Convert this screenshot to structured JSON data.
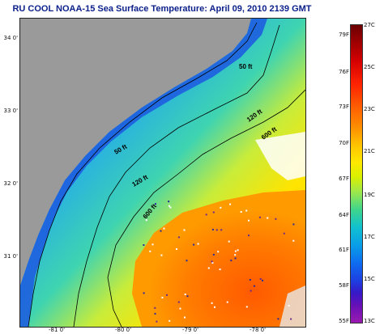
{
  "title": "RU COOL  NOAA-15  Sea Surface Temperature:  April 09, 2010 2139 GMT",
  "map": {
    "latitude_labels": [
      "34 0'",
      "33 0'",
      "32 0'",
      "31 0'"
    ],
    "longitude_labels": [
      "-81 0'",
      "-80 0'",
      "-79 0'",
      "-78 0'"
    ],
    "contour_labels": [
      "50 ft",
      "120 ft",
      "600 ft",
      "50 ft",
      "120 ft",
      "600 ft"
    ]
  },
  "colorbar": {
    "fahrenheit": [
      "79F",
      "76F",
      "73F",
      "70F",
      "67F",
      "64F",
      "61F",
      "58F",
      "55F"
    ],
    "celsius": [
      "27C",
      "25C",
      "23C",
      "21C",
      "19C",
      "17C",
      "15C",
      "13C"
    ]
  },
  "colors": {
    "land": "#9a9a9a",
    "shelf": "#1a5fe6",
    "gulf_stream": "#ff6a00",
    "title": "#0b1f8a"
  }
}
